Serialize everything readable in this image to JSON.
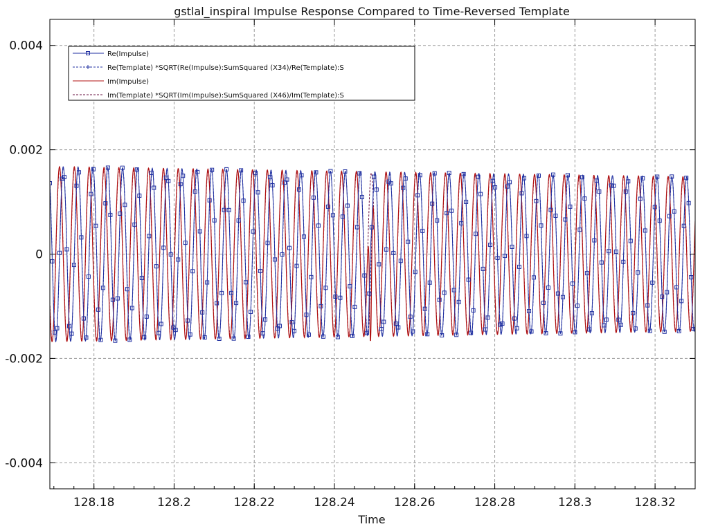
{
  "chart_data": {
    "type": "line",
    "title": "gstlal_inspiral Impulse Response Compared to Time-Reversed Template",
    "xlabel": "Time",
    "ylabel": "",
    "xlim": [
      128.169,
      128.33
    ],
    "ylim": [
      -0.0045,
      0.0045
    ],
    "x_ticks": [
      128.18,
      128.2,
      128.22,
      128.24,
      128.26,
      128.28,
      128.3,
      128.32
    ],
    "x_tick_labels": [
      "128.18",
      "128.2",
      "128.22",
      "128.24",
      "128.26",
      "128.28",
      "128.3",
      "128.32"
    ],
    "y_ticks": [
      0.004,
      0.002,
      0,
      -0.002,
      -0.004
    ],
    "y_tick_labels": [
      "0.004",
      "0.002",
      "0",
      "-0.002",
      "-0.004"
    ],
    "grid": true,
    "legend_position": "top-left",
    "signal": {
      "t_start": 128.169,
      "t_end": 128.33,
      "frequency_hz_start": 270,
      "frequency_hz_end": 270,
      "amplitude_start": 0.00168,
      "amplitude_end": 0.00148,
      "glitch_time": 128.249,
      "glitch_min": -0.00224,
      "glitch_max": 0.00177
    },
    "series": [
      {
        "name": "Re(Impulse)",
        "color": "#1f2fa0",
        "style": "solid",
        "marker": "square"
      },
      {
        "name": "Re(Template) *SQRT(Re(Impulse):SumSquared (X34)/Re(Template):S",
        "color": "#1f2fa0",
        "style": "dashed",
        "marker": "plus"
      },
      {
        "name": "Im(Impulse)",
        "color": "#b01010",
        "style": "solid",
        "marker": "none"
      },
      {
        "name": "Im(Template) *SQRT(Im(Impulse):SumSquared (X46)/Im(Template):S",
        "color": "#6a1040",
        "style": "dashed",
        "marker": "none"
      }
    ]
  }
}
